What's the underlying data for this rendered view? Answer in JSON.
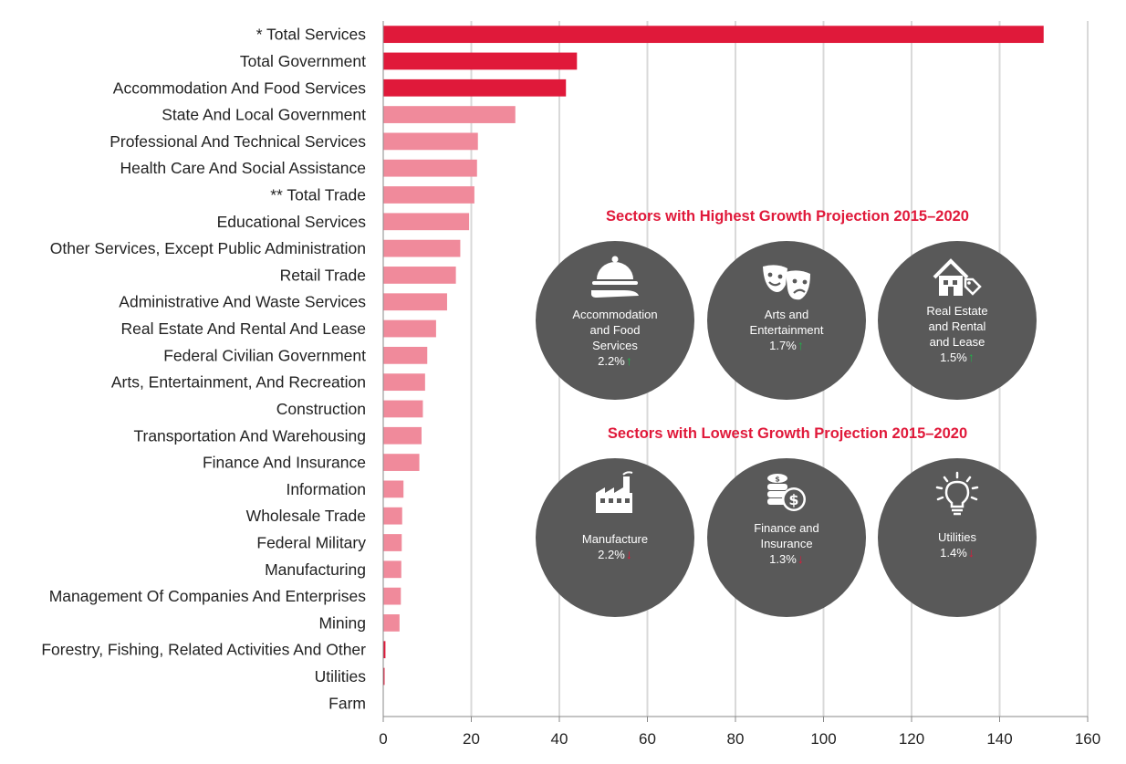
{
  "chart_data": {
    "type": "bar",
    "orientation": "horizontal",
    "categories": [
      "* Total Services",
      "Total Government",
      "Accommodation And Food Services",
      "State And Local Government ",
      "Professional And Technical Services",
      "Health Care And Social Assistance",
      "** Total Trade",
      "Educational Services",
      "Other Services, Except Public Administration",
      "Retail Trade ",
      "Administrative And Waste Services",
      "Real Estate And Rental And Lease",
      "Federal Civilian Government ",
      "Arts, Entertainment, And Recreation",
      "Construction",
      "Transportation And Warehousing",
      "Finance And Insurance",
      "Information",
      "Wholesale Trade ",
      "Federal Military ",
      "Manufacturing",
      "Management Of Companies And Enterprises",
      "Mining",
      "Forestry, Fishing, Related Activities And Other",
      "Utilities",
      "Farm"
    ],
    "values": [
      150,
      44,
      41.5,
      30,
      21.5,
      21.3,
      20.7,
      19.5,
      17.5,
      16.5,
      14.5,
      12,
      10,
      9.5,
      9,
      8.7,
      8.2,
      4.6,
      4.3,
      4.2,
      4.1,
      4,
      3.7,
      0.5,
      0.3,
      0
    ],
    "bar_colors": [
      "#e0193a",
      "#e0193a",
      "#e0193a",
      "#f08a9b",
      "#f08a9b",
      "#f08a9b",
      "#f08a9b",
      "#f08a9b",
      "#f08a9b",
      "#f08a9b",
      "#f08a9b",
      "#f08a9b",
      "#f08a9b",
      "#f08a9b",
      "#f08a9b",
      "#f08a9b",
      "#f08a9b",
      "#f08a9b",
      "#f08a9b",
      "#f08a9b",
      "#f08a9b",
      "#f08a9b",
      "#f08a9b",
      "#e0193a",
      "#e0193a",
      "#e0193a"
    ],
    "xlim": [
      0,
      160
    ],
    "xticks": [
      0,
      20,
      40,
      60,
      80,
      100,
      120,
      140,
      160
    ],
    "grid": "vertical",
    "title": "",
    "xlabel": "",
    "ylabel": ""
  },
  "colors": {
    "highlight": "#e0193a",
    "bar": "#f08a9b",
    "grid": "#d9d9d9",
    "circle": "#595959",
    "up": "#22b04b",
    "down": "#e0193a"
  },
  "panels": {
    "highest": {
      "title": "Sectors with Highest Growth Projection 2015–2020",
      "items": [
        {
          "icon": "food-cloche-icon",
          "label_lines": [
            "Accommodation",
            "and Food",
            "Services"
          ],
          "value": "2.2%",
          "trend": "up"
        },
        {
          "icon": "theater-masks-icon",
          "label_lines": [
            "Arts and",
            "Entertainment"
          ],
          "value": "1.7%",
          "trend": "up"
        },
        {
          "icon": "house-tag-icon",
          "label_lines": [
            "Real Estate",
            "and Rental",
            "and Lease"
          ],
          "value": "1.5%",
          "trend": "up"
        }
      ]
    },
    "lowest": {
      "title": "Sectors with Lowest Growth Projection 2015–2020",
      "items": [
        {
          "icon": "factory-icon",
          "label_lines": [
            "Manufacture"
          ],
          "value": "2.2%",
          "trend": "down"
        },
        {
          "icon": "coins-dollar-icon",
          "label_lines": [
            "Finance and",
            "Insurance"
          ],
          "value": "1.3%",
          "trend": "down"
        },
        {
          "icon": "lightbulb-icon",
          "label_lines": [
            "Utilities"
          ],
          "value": "1.4%",
          "trend": "down"
        }
      ]
    }
  },
  "arrows": {
    "up": "↑",
    "down": "↓"
  }
}
